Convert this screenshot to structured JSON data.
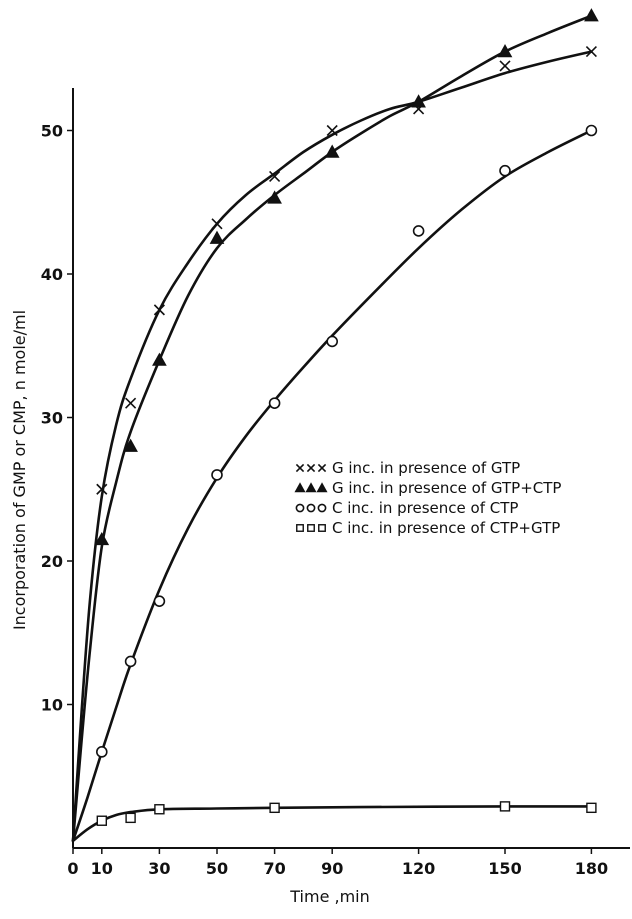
{
  "chart_data": {
    "type": "line",
    "title": "",
    "xlabel": "Time ,min",
    "ylabel": "Incorporation of GMP or CMP, n mole/ml",
    "xlim": [
      0,
      195
    ],
    "ylim": [
      0,
      55
    ],
    "x_ticks": [
      0,
      10,
      30,
      50,
      70,
      90,
      120,
      150,
      180
    ],
    "y_ticks": [
      10,
      20,
      30,
      40,
      50
    ],
    "grid": false,
    "legend_position": "right",
    "series": [
      {
        "name": "G inc. in  presence of GTP",
        "marker": "x",
        "x": [
          10,
          20,
          30,
          50,
          70,
          90,
          120,
          150,
          180
        ],
        "y": [
          25.0,
          31.0,
          37.5,
          43.5,
          46.8,
          50.0,
          51.5,
          54.5,
          55.5
        ],
        "curve_x": [
          0,
          3,
          6,
          10,
          15,
          20,
          30,
          40,
          50,
          60,
          70,
          80,
          90,
          100,
          110,
          120,
          135,
          150,
          165,
          180
        ],
        "curve_y": [
          0.5,
          9.5,
          17.5,
          24.5,
          29.5,
          32.7,
          37.5,
          40.8,
          43.5,
          45.5,
          47.0,
          48.5,
          49.7,
          50.7,
          51.5,
          52.0,
          53.0,
          54.0,
          54.8,
          55.5
        ]
      },
      {
        "name": "G inc. in  presence of GTP+CTP",
        "marker": "triangle",
        "x": [
          10,
          20,
          30,
          50,
          70,
          90,
          120,
          150,
          180
        ],
        "y": [
          21.5,
          28.0,
          34.0,
          42.5,
          45.3,
          48.5,
          52.0,
          55.5,
          58.0
        ],
        "curve_x": [
          0,
          3,
          6,
          10,
          15,
          20,
          30,
          40,
          50,
          60,
          70,
          80,
          90,
          100,
          110,
          120,
          135,
          150,
          165,
          180
        ],
        "curve_y": [
          0.5,
          7.5,
          14.0,
          21.0,
          25.5,
          29.0,
          34.0,
          38.5,
          41.8,
          43.8,
          45.5,
          47.0,
          48.5,
          49.8,
          51.0,
          52.0,
          53.8,
          55.5,
          56.8,
          58.0
        ]
      },
      {
        "name": "C inc. in  presence of CTP",
        "marker": "circle",
        "x": [
          10,
          20,
          30,
          50,
          70,
          90,
          120,
          150,
          180
        ],
        "y": [
          6.7,
          13.0,
          17.2,
          26.0,
          31.0,
          35.3,
          43.0,
          47.2,
          50.0
        ],
        "curve_x": [
          0,
          5,
          10,
          15,
          20,
          30,
          40,
          50,
          60,
          70,
          80,
          90,
          105,
          120,
          135,
          150,
          165,
          180
        ],
        "curve_y": [
          0.5,
          3.5,
          6.7,
          9.8,
          12.8,
          18.0,
          22.3,
          25.8,
          28.7,
          31.2,
          33.5,
          35.7,
          38.8,
          41.8,
          44.5,
          46.8,
          48.5,
          50.0
        ]
      },
      {
        "name": "C inc. in  presence of CTP+GTP",
        "marker": "square",
        "x": [
          10,
          20,
          30,
          70,
          150,
          180
        ],
        "y": [
          1.9,
          2.1,
          2.7,
          2.8,
          2.9,
          2.8
        ],
        "curve_x": [
          0,
          5,
          10,
          15,
          20,
          30,
          50,
          70,
          100,
          150,
          180
        ],
        "curve_y": [
          0.5,
          1.3,
          1.9,
          2.3,
          2.5,
          2.7,
          2.75,
          2.8,
          2.85,
          2.9,
          2.9
        ]
      }
    ]
  }
}
